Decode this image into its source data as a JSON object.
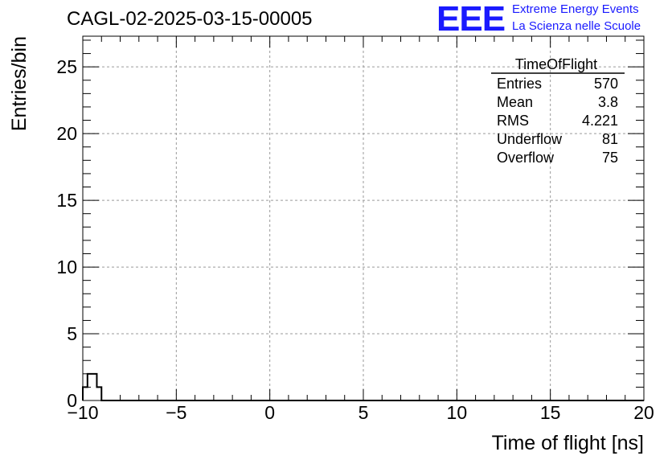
{
  "header": {
    "run_title": "CAGL-02-2025-03-15-00005",
    "logo_text": "EEE",
    "logo_line1": "Extreme Energy Events",
    "logo_line2": "La Scienza nelle Scuole",
    "logo_color": "#1a1aff"
  },
  "chart_data": {
    "type": "histogram",
    "xlabel": "Time of flight [ns]",
    "ylabel": "Entries/bin",
    "xlim": [
      -10,
      20
    ],
    "ylim": [
      0,
      27.3
    ],
    "grid": true,
    "line_color": "#000000",
    "bin_width": 0.25,
    "x_ticks": [
      -10,
      -5,
      0,
      5,
      10,
      15,
      20
    ],
    "x_tick_labels": [
      "−10",
      "−5",
      "0",
      "5",
      "10",
      "15",
      "20"
    ],
    "y_ticks": [
      0,
      5,
      10,
      15,
      20,
      25
    ],
    "y_tick_labels": [
      "0",
      "5",
      "10",
      "15",
      "20",
      "25"
    ],
    "values": [
      1,
      2,
      2,
      1,
      0,
      0,
      0,
      0,
      0,
      0,
      0,
      0,
      0,
      0,
      0,
      0,
      0,
      0,
      0,
      0,
      0,
      0,
      0,
      0,
      0,
      0,
      0,
      0,
      0,
      0,
      0,
      0,
      0,
      0,
      0,
      0,
      0,
      0,
      0,
      0,
      0,
      0,
      0,
      0,
      0,
      0,
      0,
      0,
      0,
      0,
      0,
      0,
      0,
      0,
      0,
      0,
      0,
      0,
      0,
      0,
      0,
      0,
      0,
      0,
      0,
      0,
      0,
      0,
      0,
      0,
      0,
      0,
      0,
      0,
      0,
      0,
      0,
      0,
      0,
      0,
      0,
      0,
      0,
      0,
      0,
      0,
      0,
      0,
      0,
      0,
      0,
      0,
      0,
      0,
      0,
      0,
      0,
      0,
      0,
      0,
      0,
      0,
      0,
      0,
      0,
      0,
      0,
      0,
      0,
      0,
      0,
      0,
      0,
      0,
      0,
      0,
      0,
      0,
      0,
      0
    ],
    "stats_box": {
      "title": "TimeOfFlight",
      "position": "top-right",
      "rows": [
        {
          "label": "Entries",
          "value": "570"
        },
        {
          "label": "Mean",
          "value": "3.8"
        },
        {
          "label": "RMS",
          "value": "4.221"
        },
        {
          "label": "Underflow",
          "value": "81"
        },
        {
          "label": "Overflow",
          "value": "75"
        }
      ]
    }
  }
}
